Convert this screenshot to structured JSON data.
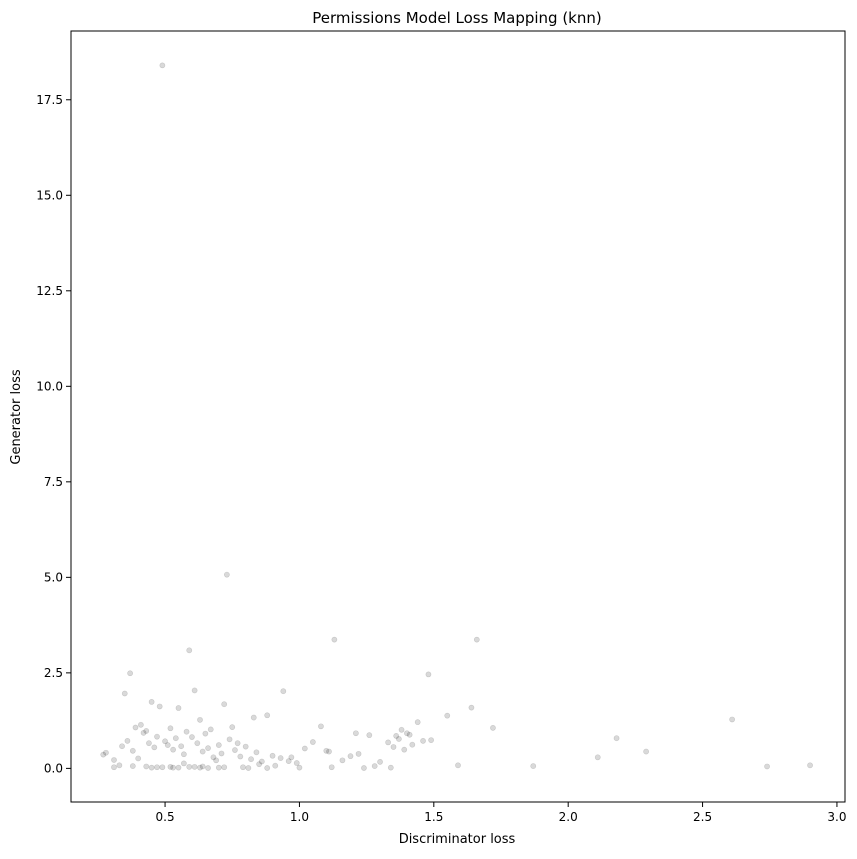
{
  "chart_data": {
    "type": "scatter",
    "title": "Permissions Model Loss Mapping (knn)",
    "xlabel": "Discriminator loss",
    "ylabel": "Generator loss",
    "xlim": [
      0.15,
      3.03
    ],
    "ylim": [
      -0.88,
      19.3
    ],
    "x_ticks": [
      0.5,
      1.0,
      1.5,
      2.0,
      2.5,
      3.0
    ],
    "x_tick_labels": [
      "0.5",
      "1.0",
      "1.5",
      "2.0",
      "2.5",
      "3.0"
    ],
    "y_ticks": [
      0.0,
      2.5,
      5.0,
      7.5,
      10.0,
      12.5,
      15.0,
      17.5
    ],
    "y_tick_labels": [
      "0.0",
      "2.5",
      "5.0",
      "7.5",
      "10.0",
      "12.5",
      "15.0",
      "17.5"
    ],
    "grid": false,
    "marker_color": "#000000",
    "marker_alpha": 0.15,
    "series": [
      {
        "x": [
          0.49,
          0.73,
          1.13,
          1.66,
          0.59,
          0.37,
          0.61,
          0.94,
          1.48,
          0.35,
          0.45,
          0.72,
          0.48,
          0.55,
          2.61,
          1.64,
          1.55,
          0.88,
          0.83,
          0.63,
          0.41,
          0.39,
          0.52,
          0.58,
          0.67,
          0.75,
          1.08,
          1.72,
          1.38,
          1.4,
          1.36,
          1.44,
          1.26,
          1.21,
          1.05,
          0.28,
          0.27,
          0.31,
          0.33,
          0.36,
          0.38,
          0.42,
          0.44,
          0.46,
          0.47,
          0.5,
          0.51,
          0.53,
          0.54,
          0.56,
          0.57,
          0.6,
          0.62,
          0.64,
          0.65,
          0.66,
          0.68,
          0.7,
          0.71,
          0.74,
          0.76,
          0.78,
          0.8,
          0.82,
          0.84,
          0.86,
          0.9,
          0.93,
          0.96,
          0.99,
          1.02,
          1.11,
          1.16,
          1.22,
          1.3,
          1.35,
          1.42,
          1.49,
          1.59,
          1.87,
          2.11,
          2.18,
          2.29,
          2.74,
          2.9,
          0.34,
          0.4,
          0.43,
          0.57,
          0.69,
          0.77,
          0.85,
          0.91,
          0.97,
          1.1,
          1.19,
          1.28,
          1.33,
          1.37,
          1.39,
          1.41,
          1.46,
          0.31,
          0.45,
          0.52,
          0.63,
          0.72,
          0.81,
          0.43,
          0.49,
          0.55,
          0.61,
          0.66,
          0.38,
          0.47,
          0.53,
          0.59,
          0.64,
          0.7,
          0.79,
          0.88,
          1.0,
          1.12,
          1.24,
          1.34
        ],
        "y": [
          18.4,
          5.07,
          3.37,
          3.37,
          3.09,
          2.49,
          2.04,
          2.02,
          2.46,
          1.96,
          1.74,
          1.68,
          1.62,
          1.58,
          1.28,
          1.59,
          1.38,
          1.39,
          1.33,
          1.27,
          1.14,
          1.07,
          1.05,
          0.96,
          1.02,
          1.08,
          1.1,
          1.06,
          1.01,
          0.92,
          0.85,
          1.21,
          0.87,
          0.92,
          0.69,
          0.41,
          0.36,
          0.22,
          0.08,
          0.72,
          0.46,
          0.93,
          0.66,
          0.55,
          0.83,
          0.71,
          0.61,
          0.49,
          0.79,
          0.58,
          0.37,
          0.82,
          0.66,
          0.44,
          0.91,
          0.53,
          0.29,
          0.61,
          0.39,
          0.76,
          0.48,
          0.31,
          0.57,
          0.24,
          0.42,
          0.18,
          0.33,
          0.27,
          0.19,
          0.14,
          0.52,
          0.44,
          0.21,
          0.38,
          0.17,
          0.56,
          0.62,
          0.74,
          0.08,
          0.06,
          0.29,
          0.79,
          0.44,
          0.05,
          0.08,
          0.58,
          0.26,
          0.98,
          0.13,
          0.21,
          0.66,
          0.11,
          0.07,
          0.29,
          0.46,
          0.32,
          0.06,
          0.68,
          0.77,
          0.49,
          0.88,
          0.72,
          0.03,
          0.02,
          0.04,
          0.02,
          0.03,
          0.01,
          0.05,
          0.03,
          0.02,
          0.04,
          0.01,
          0.06,
          0.03,
          0.02,
          0.04,
          0.05,
          0.02,
          0.03,
          0.01,
          0.02,
          0.03,
          0.01,
          0.02
        ]
      }
    ]
  }
}
